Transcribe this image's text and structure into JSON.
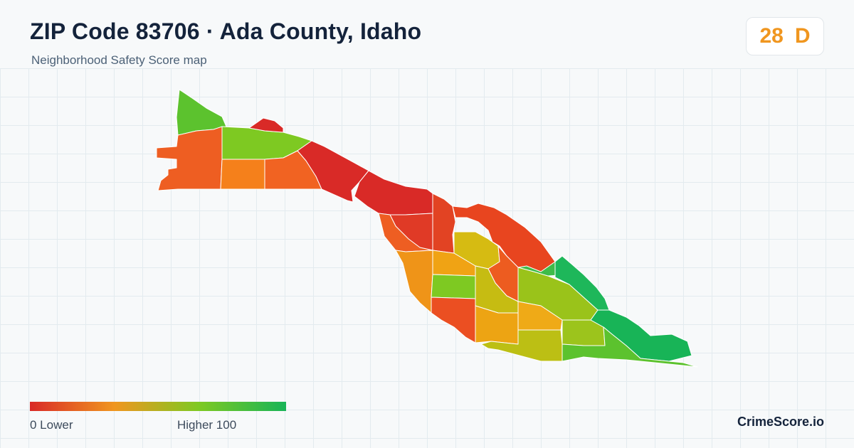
{
  "header": {
    "title": "ZIP Code 83706 · Ada County, Idaho",
    "subtitle": "Neighborhood Safety Score map"
  },
  "score_badge": {
    "score": "28",
    "grade": "D",
    "color": "#f0961f"
  },
  "legend": {
    "min_label": "0  Lower",
    "max_label": "Higher  100",
    "gradient_colors": [
      "#d92a27",
      "#f0961f",
      "#7ec922",
      "#18b457"
    ]
  },
  "brand": "CrimeScore.io",
  "map_regions": [
    {
      "id": "nw-tip",
      "color": "#5cc22e"
    },
    {
      "id": "west-large",
      "color": "#ee5e22"
    },
    {
      "id": "north-mid",
      "color": "#7ec922"
    },
    {
      "id": "west-mid",
      "color": "#f5801b"
    },
    {
      "id": "west-mid-2",
      "color": "#f16322"
    },
    {
      "id": "river-red-1",
      "color": "#d92a27"
    },
    {
      "id": "river-red-2",
      "color": "#d92a27"
    },
    {
      "id": "central-red",
      "color": "#d92a27"
    },
    {
      "id": "central-red-2",
      "color": "#e03a26"
    },
    {
      "id": "central-orange",
      "color": "#ee5e22"
    },
    {
      "id": "central-yellow",
      "color": "#d6bb12"
    },
    {
      "id": "central-amber",
      "color": "#f0a314"
    },
    {
      "id": "south-orange",
      "color": "#ef9418"
    },
    {
      "id": "south-green",
      "color": "#7ec922"
    },
    {
      "id": "south-red-orange",
      "color": "#eb4f22"
    },
    {
      "id": "east-loop",
      "color": "#e8451f"
    },
    {
      "id": "east-orange",
      "color": "#ed5c20"
    },
    {
      "id": "east-olive",
      "color": "#c6bc12"
    },
    {
      "id": "south-amber",
      "color": "#eda413"
    },
    {
      "id": "east-yellowgreen",
      "color": "#9ac31a"
    },
    {
      "id": "east-amber",
      "color": "#efaa17"
    },
    {
      "id": "east-green-1",
      "color": "#3fbc49"
    },
    {
      "id": "east-green-2",
      "color": "#1eb75a"
    },
    {
      "id": "east-lime",
      "color": "#9cc41c"
    },
    {
      "id": "south-olive",
      "color": "#bcbf14"
    },
    {
      "id": "far-east-green",
      "color": "#18b457"
    },
    {
      "id": "southeast-green",
      "color": "#5cc22e"
    }
  ]
}
